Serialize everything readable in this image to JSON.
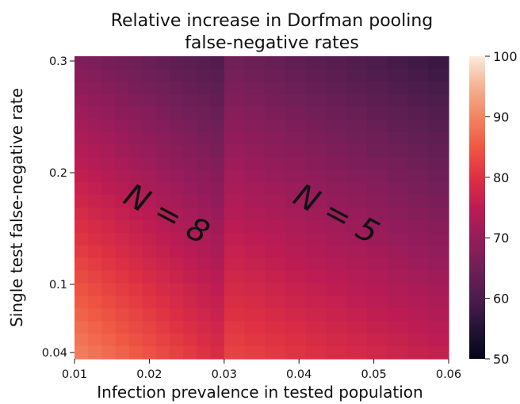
{
  "chart_data": {
    "type": "heatmap",
    "title_lines": [
      "Relative increase in Dorfman pooling",
      "false-negative rates"
    ],
    "xlabel": "Infection prevalence in tested population",
    "ylabel": "Single test false-negative rate",
    "xlim": [
      0.01,
      0.06
    ],
    "ylim": [
      0.04,
      0.3
    ],
    "x_ticks": [
      0.01,
      0.02,
      0.03,
      0.04,
      0.05,
      0.06
    ],
    "x_tick_labels": [
      "0.01",
      "0.02",
      "0.03",
      "0.04",
      "0.05",
      "0.06"
    ],
    "y_ticks": [
      0.3,
      0.2,
      0.1,
      0.04
    ],
    "y_tick_labels": [
      "0.3",
      "0.2",
      "0.1",
      "0.04"
    ],
    "colorbar": {
      "min": 50,
      "max": 100,
      "ticks": [
        50,
        60,
        70,
        80,
        90,
        100
      ],
      "tick_labels": [
        "50",
        "60",
        "70",
        "80",
        "90",
        "100"
      ]
    },
    "regions": [
      {
        "label": "N = 8",
        "x_range": [
          0.01,
          0.03
        ],
        "corner_values": {
          "low_x_low_y": 90,
          "high_x_low_y": 79,
          "low_x_high_y": 67,
          "high_x_high_y": 60
        }
      },
      {
        "label": "N = 5",
        "x_range": [
          0.03,
          0.06
        ],
        "corner_values": {
          "low_x_low_y": 83,
          "high_x_low_y": 76,
          "low_x_high_y": 65,
          "high_x_high_y": 57
        }
      }
    ]
  }
}
